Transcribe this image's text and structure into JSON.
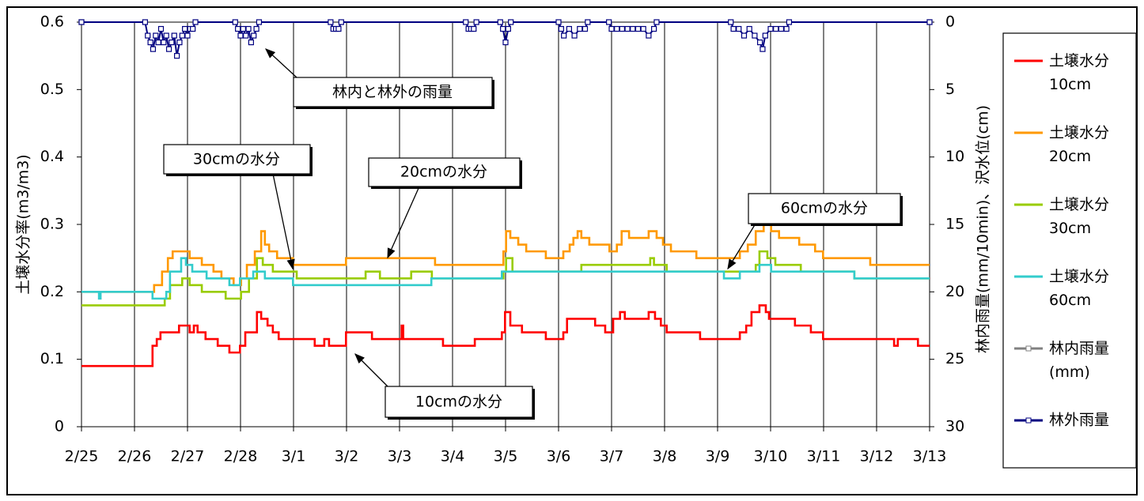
{
  "chart_data": {
    "type": "line",
    "y_label": "土壌水分率(m3/m3)",
    "y2_label": "林内雨量(mm/10min)、沢水位(cm)",
    "xlim": [
      0,
      16
    ],
    "xticks": [
      {
        "value": 0,
        "label": "2/25"
      },
      {
        "value": 1,
        "label": "2/26"
      },
      {
        "value": 2,
        "label": "2/27"
      },
      {
        "value": 3,
        "label": "2/28"
      },
      {
        "value": 4,
        "label": "3/1"
      },
      {
        "value": 5,
        "label": "3/2"
      },
      {
        "value": 6,
        "label": "3/3"
      },
      {
        "value": 7,
        "label": "3/4"
      },
      {
        "value": 8,
        "label": "3/5"
      },
      {
        "value": 9,
        "label": "3/6"
      },
      {
        "value": 10,
        "label": "3/7"
      },
      {
        "value": 11,
        "label": "3/8"
      },
      {
        "value": 12,
        "label": "3/9"
      },
      {
        "value": 13,
        "label": "3/10"
      },
      {
        "value": 14,
        "label": "3/11"
      },
      {
        "value": 15,
        "label": "3/12"
      },
      {
        "value": 16,
        "label": "3/13"
      }
    ],
    "ylim": [
      0,
      0.6
    ],
    "yticks": [
      0,
      0.1,
      0.2,
      0.3,
      0.4,
      0.5,
      0.6
    ],
    "y2lim": [
      30,
      0
    ],
    "y2ticks": [
      0,
      5,
      10,
      15,
      20,
      25,
      30
    ],
    "grid": "x",
    "legend": "right",
    "annotations": [
      "林内と林外の雨量",
      "30cmの水分",
      "20cmの水分",
      "60cmの水分",
      "10cmの水分"
    ],
    "series": [
      {
        "name": "土壌水分\n10cm",
        "color": "#ff0000",
        "drawstyle": "steps-post",
        "x": [
          0,
          1.34,
          1.42,
          1.49,
          1.84,
          2.04,
          2.12,
          2.19,
          2.34,
          2.57,
          2.79,
          2.99,
          3.09,
          3.31,
          3.39,
          3.51,
          3.61,
          3.72,
          4.4,
          4.58,
          4.67,
          4.99,
          5.48,
          6.04,
          6.07,
          6.82,
          7.42,
          7.93,
          7.99,
          8.09,
          8.31,
          8.76,
          9.09,
          9.16,
          9.69,
          9.88,
          10.03,
          10.16,
          10.25,
          10.7,
          10.82,
          10.93,
          11.04,
          11.67,
          12.42,
          12.54,
          12.64,
          12.79,
          12.91,
          12.97,
          13.46,
          13.76,
          13.99,
          15.33,
          15.4,
          15.78,
          16
        ],
        "values": [
          0.09,
          0.12,
          0.13,
          0.14,
          0.15,
          0.14,
          0.15,
          0.14,
          0.13,
          0.12,
          0.11,
          0.12,
          0.14,
          0.17,
          0.16,
          0.15,
          0.14,
          0.13,
          0.12,
          0.13,
          0.12,
          0.14,
          0.13,
          0.15,
          0.13,
          0.12,
          0.13,
          0.14,
          0.17,
          0.15,
          0.14,
          0.13,
          0.14,
          0.16,
          0.15,
          0.14,
          0.16,
          0.17,
          0.16,
          0.17,
          0.16,
          0.15,
          0.14,
          0.13,
          0.14,
          0.15,
          0.17,
          0.18,
          0.17,
          0.16,
          0.15,
          0.14,
          0.13,
          0.12,
          0.13,
          0.12,
          0.12
        ]
      },
      {
        "name": "土壌水分\n20cm",
        "color": "#ff9900",
        "drawstyle": "steps-post",
        "x": [
          0,
          1.37,
          1.52,
          1.63,
          1.72,
          2.04,
          2.27,
          2.49,
          2.64,
          2.87,
          3.01,
          3.12,
          3.27,
          3.39,
          3.46,
          3.54,
          3.69,
          3.99,
          4.99,
          6.67,
          7.96,
          8.01,
          8.09,
          8.24,
          8.39,
          8.76,
          9.09,
          9.21,
          9.28,
          9.36,
          9.43,
          9.58,
          9.96,
          10.1,
          10.19,
          10.33,
          10.7,
          10.85,
          10.97,
          11.12,
          11.6,
          12.42,
          12.57,
          12.72,
          12.87,
          13.01,
          13.16,
          13.54,
          13.84,
          13.99,
          14.88,
          16
        ],
        "values": [
          0.2,
          0.21,
          0.23,
          0.25,
          0.26,
          0.25,
          0.24,
          0.23,
          0.22,
          0.21,
          0.22,
          0.24,
          0.26,
          0.29,
          0.27,
          0.26,
          0.25,
          0.24,
          0.25,
          0.24,
          0.26,
          0.29,
          0.28,
          0.27,
          0.26,
          0.25,
          0.26,
          0.27,
          0.28,
          0.29,
          0.28,
          0.27,
          0.26,
          0.27,
          0.29,
          0.28,
          0.29,
          0.28,
          0.27,
          0.26,
          0.25,
          0.26,
          0.27,
          0.29,
          0.3,
          0.29,
          0.28,
          0.27,
          0.26,
          0.25,
          0.24,
          0.24
        ]
      },
      {
        "name": "土壌水分\n30cm",
        "color": "#99cc00",
        "drawstyle": "steps-post",
        "x": [
          0,
          1.57,
          1.67,
          1.9,
          2.04,
          2.27,
          2.72,
          3.01,
          3.16,
          3.31,
          3.42,
          3.61,
          4.06,
          5.36,
          5.63,
          6.22,
          6.61,
          7.96,
          8.01,
          8.13,
          9.43,
          10.1,
          10.73,
          10.8,
          11.04,
          12.72,
          12.79,
          12.94,
          13.09,
          13.57,
          14.58,
          16
        ],
        "values": [
          0.18,
          0.19,
          0.21,
          0.22,
          0.21,
          0.2,
          0.19,
          0.2,
          0.22,
          0.25,
          0.24,
          0.23,
          0.22,
          0.23,
          0.22,
          0.23,
          0.22,
          0.23,
          0.25,
          0.23,
          0.24,
          0.24,
          0.25,
          0.24,
          0.23,
          0.24,
          0.26,
          0.25,
          0.24,
          0.23,
          0.22,
          0.22
        ]
      },
      {
        "name": "土壌水分\n60cm",
        "color": "#33cccc",
        "drawstyle": "steps-post",
        "x": [
          0,
          0.33,
          0.36,
          1.34,
          1.6,
          1.67,
          1.88,
          1.97,
          2.09,
          2.36,
          2.79,
          2.99,
          3.24,
          3.46,
          3.99,
          6.6,
          7.93,
          12.12,
          12.42,
          12.79,
          13.01,
          14.58,
          16
        ],
        "values": [
          0.2,
          0.19,
          0.2,
          0.19,
          0.2,
          0.23,
          0.25,
          0.24,
          0.23,
          0.22,
          0.21,
          0.22,
          0.23,
          0.22,
          0.21,
          0.22,
          0.23,
          0.22,
          0.23,
          0.24,
          0.23,
          0.22,
          0.22
        ]
      },
      {
        "name": "林内雨量\n(mm)",
        "color": "#808080",
        "axis": "y2",
        "marker": "square",
        "x": [
          0,
          16
        ],
        "values": [
          0,
          0
        ]
      },
      {
        "name": "林外雨量",
        "color": "#000080",
        "axis": "y2",
        "marker": "square",
        "x": [
          0,
          1.2,
          1.25,
          1.3,
          1.35,
          1.4,
          1.45,
          1.5,
          1.55,
          1.6,
          1.65,
          1.7,
          1.75,
          1.8,
          1.85,
          1.9,
          1.95,
          2.0,
          2.05,
          2.1,
          2.15,
          2.9,
          2.95,
          3.0,
          3.05,
          3.1,
          3.15,
          3.2,
          3.25,
          3.3,
          3.35,
          4.7,
          4.75,
          4.8,
          4.85,
          4.9,
          7.25,
          7.3,
          7.35,
          7.4,
          7.45,
          7.9,
          7.95,
          8.0,
          8.05,
          8.1,
          9.0,
          9.05,
          9.1,
          9.2,
          9.3,
          9.4,
          9.5,
          9.55,
          9.95,
          10.0,
          10.1,
          10.2,
          10.3,
          10.4,
          10.5,
          10.6,
          10.7,
          10.8,
          10.85,
          12.25,
          12.3,
          12.4,
          12.5,
          12.6,
          12.7,
          12.8,
          12.85,
          12.9,
          13.0,
          13.1,
          13.2,
          13.3,
          13.35,
          16
        ],
        "values": [
          0,
          0,
          1,
          1.5,
          2,
          1,
          1.5,
          0.5,
          1.5,
          1,
          2,
          1.5,
          1,
          2.5,
          1.5,
          1,
          0.5,
          1,
          0.5,
          0.5,
          0,
          0,
          0.5,
          1,
          0.5,
          1,
          0.5,
          1.5,
          1,
          0.5,
          0,
          0,
          0.5,
          0.5,
          0.5,
          0,
          0,
          0.5,
          0.5,
          0.5,
          0,
          0,
          0.5,
          1.5,
          0.5,
          0,
          0,
          0.5,
          1,
          0.5,
          1,
          0.5,
          0.5,
          0,
          0,
          0.5,
          0.5,
          0.5,
          0.5,
          0.5,
          0.5,
          0.5,
          1,
          0.5,
          0,
          0,
          0.5,
          0.5,
          1,
          0.5,
          1,
          1.5,
          2,
          1,
          0.5,
          0.5,
          0.5,
          0.5,
          0,
          0
        ]
      }
    ]
  }
}
